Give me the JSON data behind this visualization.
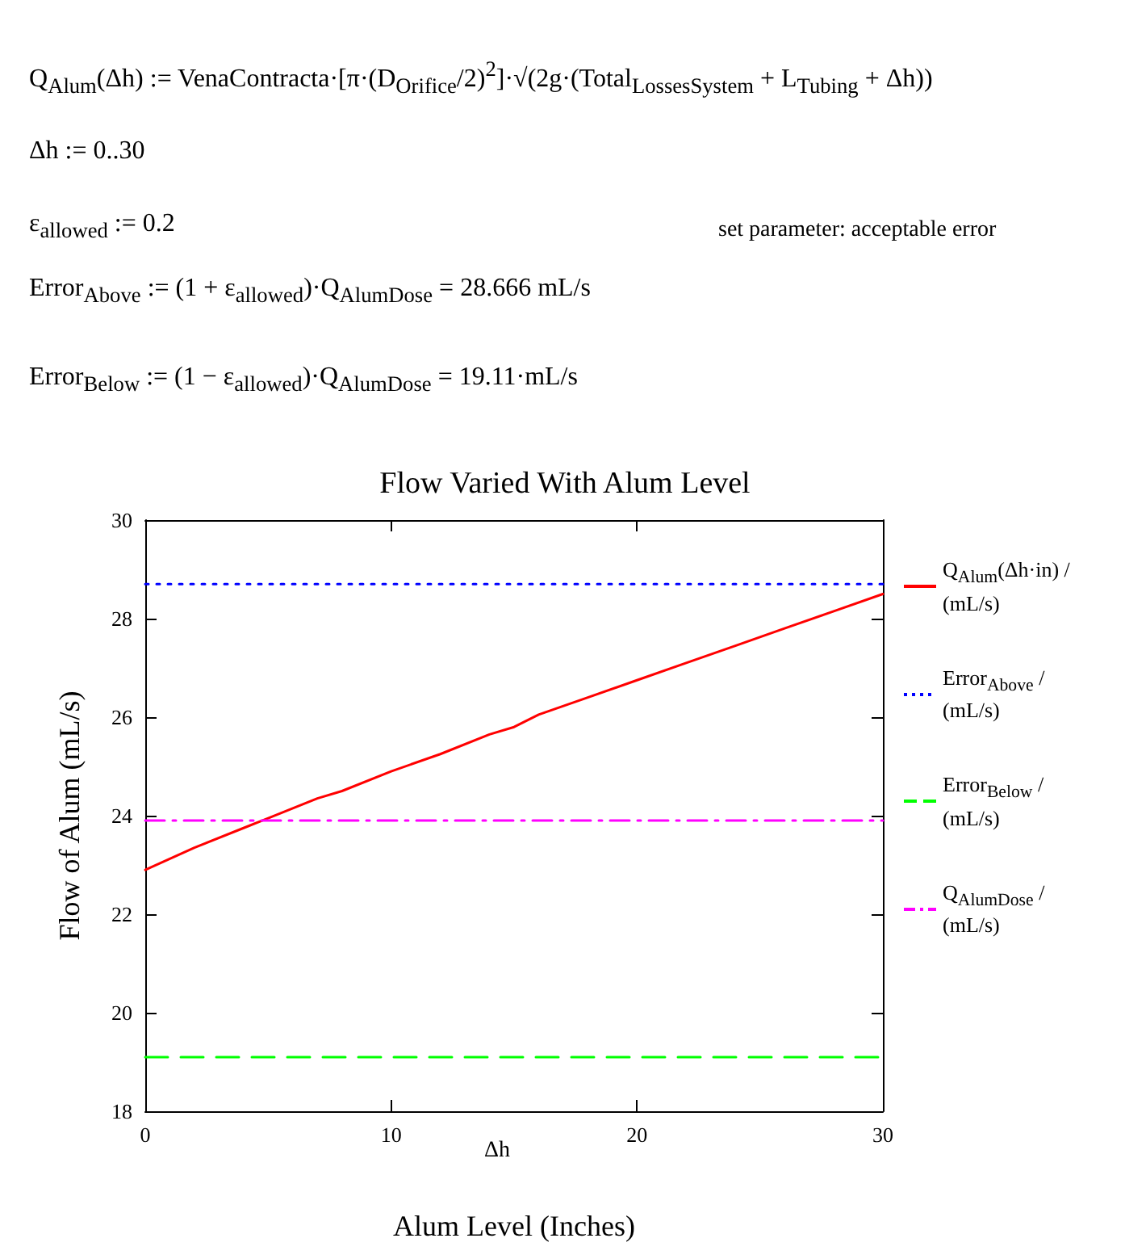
{
  "chart_data": {
    "type": "line",
    "title": "Flow Varied With Alum Level",
    "xlabel": "Alum Level (Inches)",
    "ylabel": "Flow of Alum (mL/s)",
    "annotations": [
      "Q$_{Alum}$(Δh) := VenaContracta·[π·(D$_{Orifice}$/2)$^{2}$]·√(2g·(Total$_{LossesSystem}$ + L$_{Tubing}$ + Δh))",
      "Δh := 0..30",
      "ε$_{allowed}$ := 0.2",
      "set parameter: acceptable error",
      "Error$_{Above}$ := (1 + ε$_{allowed}$)·Q$_{AlumDose}$ = 28.666 mL/s",
      "Error$_{Below}$ := (1 − ε$_{allowed}$)·Q$_{AlumDose}$ = 19.11·mL/s",
      "Δh"
    ],
    "xlim": [
      0,
      30
    ],
    "xticks": [
      0,
      10,
      20,
      30
    ],
    "ylim": [
      18,
      30
    ],
    "yticks": [
      18,
      20,
      22,
      24,
      26,
      28,
      30
    ],
    "grid": false,
    "legend": "right",
    "marker": "none",
    "series": [
      {
        "name": "Q$_{Alum}$(Δh·in) / (mL/s)",
        "color": "#ff0000",
        "line_style": "solid",
        "x": [
          0,
          2,
          4,
          5,
          7,
          8,
          10,
          12,
          14,
          15,
          16,
          18,
          20,
          22,
          24,
          26,
          28,
          30
        ],
        "values": [
          22.9,
          23.35,
          23.75,
          23.95,
          24.35,
          24.5,
          24.9,
          25.25,
          25.65,
          25.8,
          26.05,
          26.4,
          26.75,
          27.1,
          27.45,
          27.8,
          28.15,
          28.5
        ]
      },
      {
        "name": "Error$_{Above}$ / (mL/s)",
        "color": "#0000ff",
        "line_style": "dotted",
        "x": [
          0,
          30
        ],
        "values": [
          28.7,
          28.7
        ]
      },
      {
        "name": "Error$_{Below}$ / (mL/s)",
        "color": "#00ff00",
        "line_style": "dashed",
        "x": [
          0,
          30
        ],
        "values": [
          19.1,
          19.1
        ]
      },
      {
        "name": "Q$_{AlumDose}$ / (mL/s)",
        "color": "#ff00ff",
        "line_style": "dashdot",
        "x": [
          0,
          30
        ],
        "values": [
          23.9,
          23.9
        ]
      }
    ]
  }
}
